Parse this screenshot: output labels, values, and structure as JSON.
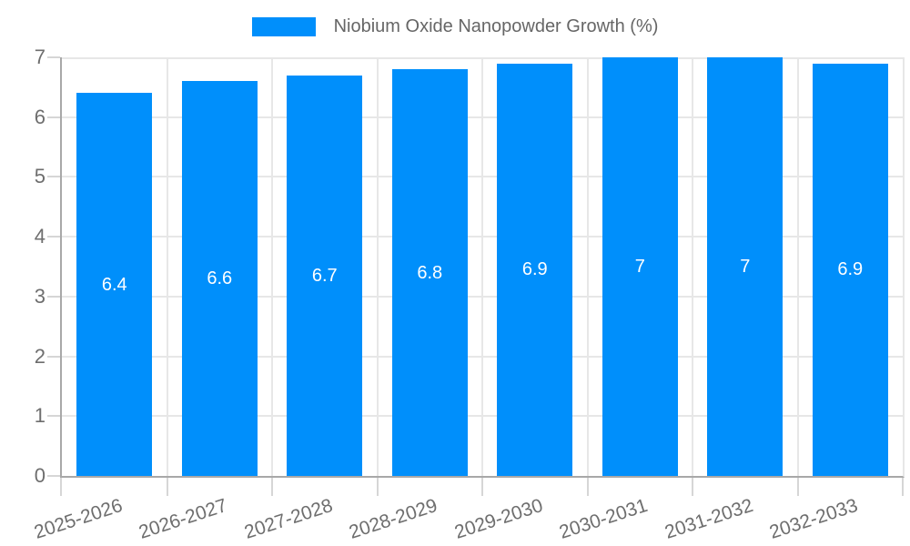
{
  "legend": {
    "label": "Niobium Oxide Nanopowder Growth (%)",
    "swatch_color": "#008FFB"
  },
  "chart_data": {
    "type": "bar",
    "title": "",
    "xlabel": "",
    "ylabel": "",
    "categories": [
      "2025-2026",
      "2026-2027",
      "2027-2028",
      "2028-2029",
      "2029-2030",
      "2030-2031",
      "2031-2032",
      "2032-2033"
    ],
    "series": [
      {
        "name": "Niobium Oxide Nanopowder Growth (%)",
        "values": [
          6.4,
          6.6,
          6.7,
          6.8,
          6.9,
          7,
          7,
          6.9
        ]
      }
    ],
    "data_labels": [
      "6.4",
      "6.6",
      "6.7",
      "6.8",
      "6.9",
      "7",
      "7",
      "6.9"
    ],
    "ylim": [
      0,
      7
    ],
    "yticks": [
      0,
      1,
      2,
      3,
      4,
      5,
      6,
      7
    ],
    "grid": true,
    "legend_position": "top",
    "x_label_rotation_deg": -18,
    "colors": {
      "bar": "#008FFB",
      "data_label": "#ffffff",
      "gridline": "#e7e7e7",
      "axis_line": "#a8a8a8",
      "tick_mark": "#d6d6d6",
      "axis_label": "#6e6e6e",
      "legend_text": "#666666",
      "background": "#ffffff"
    }
  }
}
